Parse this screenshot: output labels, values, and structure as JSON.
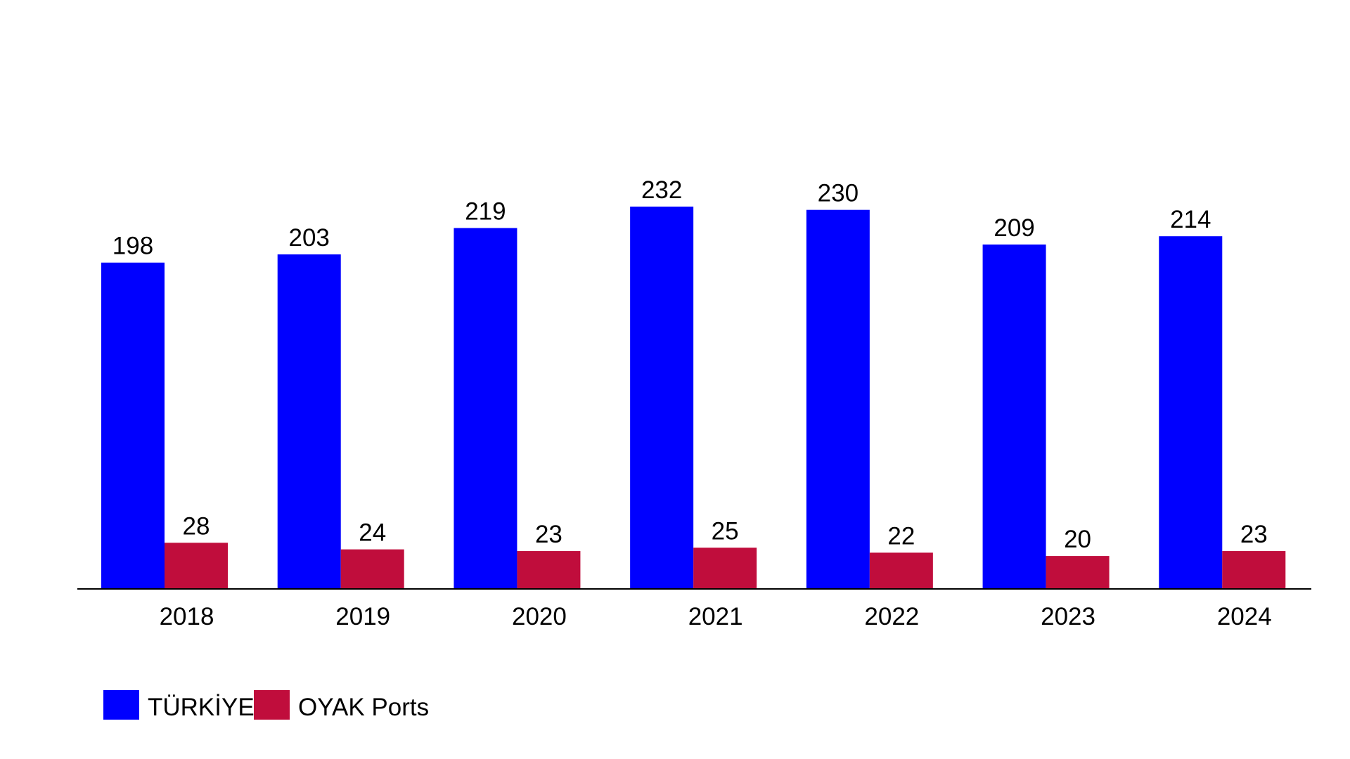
{
  "chart_data": {
    "type": "bar",
    "categories": [
      "2018",
      "2019",
      "2020",
      "2021",
      "2022",
      "2023",
      "2024"
    ],
    "series": [
      {
        "name": "TÜRKİYE",
        "color": "#0000ff",
        "values": [
          198,
          203,
          219,
          232,
          230,
          209,
          214
        ]
      },
      {
        "name": "OYAK Ports",
        "color": "#c00d3c",
        "values": [
          28,
          24,
          23,
          25,
          22,
          20,
          23
        ]
      }
    ],
    "title": "",
    "xlabel": "",
    "ylabel": "",
    "ylim": [
      0,
      240
    ],
    "grid": false,
    "legend": "bottom-left",
    "data_labels": true
  }
}
